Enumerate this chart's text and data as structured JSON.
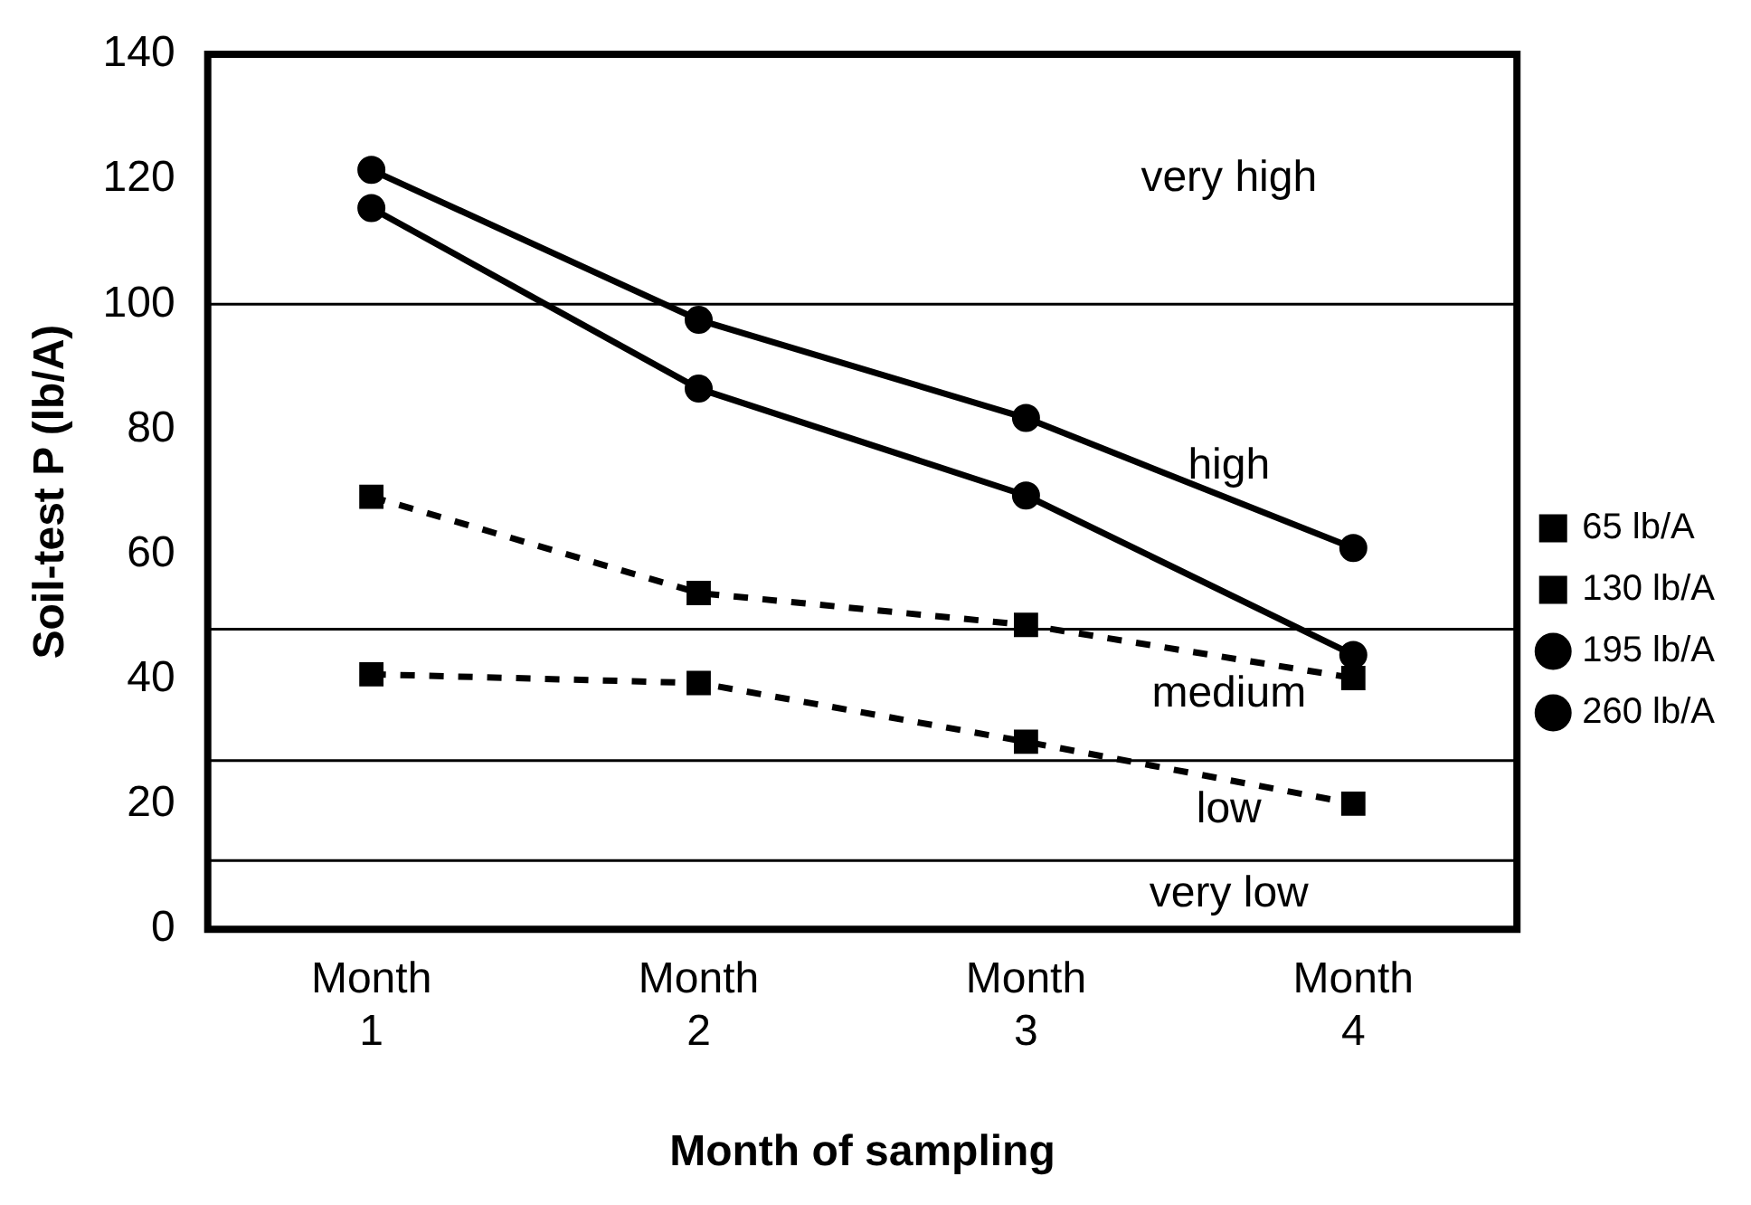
{
  "chart_data": {
    "type": "line",
    "xlabel": "Month of sampling",
    "ylabel": "Soil-test P (lb/A)",
    "categories": [
      "Month 1",
      "Month 2",
      "Month 3",
      "Month 4"
    ],
    "series": [
      {
        "name": "65 lb/A",
        "color": "#000000",
        "marker": "square",
        "line_style": "dashed",
        "values": [
          40.8,
          39.4,
          30,
          20.1
        ]
      },
      {
        "name": "130 lb/A",
        "color": "#000000",
        "marker": "square",
        "line_style": "dashed",
        "values": [
          69.2,
          53.8,
          48.7,
          40.2
        ]
      },
      {
        "name": "195 lb/A",
        "color": "#000000",
        "marker": "circle",
        "line_style": "solid",
        "values": [
          115.4,
          86.5,
          69.4,
          43.9
        ]
      },
      {
        "name": "260 lb/A",
        "color": "#000000",
        "marker": "circle",
        "line_style": "solid",
        "values": [
          121.5,
          97.5,
          81.8,
          61
        ]
      }
    ],
    "ylim": [
      0,
      140
    ],
    "yticks": [
      0,
      20,
      40,
      60,
      80,
      100,
      120,
      140
    ],
    "ref_lines": [
      {
        "axis": "y",
        "value": 100
      },
      {
        "axis": "y",
        "value": 48
      },
      {
        "axis": "y",
        "value": 27
      },
      {
        "axis": "y",
        "value": 11
      }
    ],
    "annotations": [
      "very high",
      "high",
      "medium",
      "low",
      "very low"
    ],
    "grid": false,
    "legend": "right"
  }
}
